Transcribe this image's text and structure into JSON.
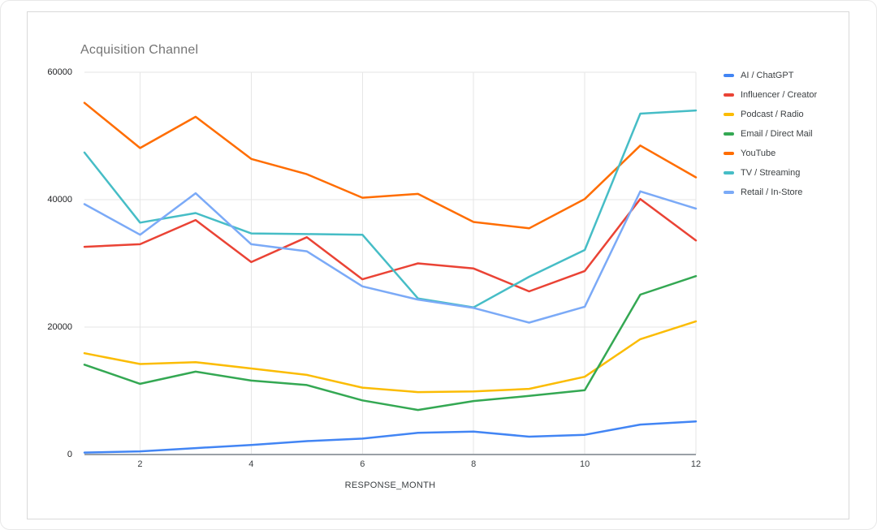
{
  "header": {
    "title": "Acquisition Channel"
  },
  "chart_data": {
    "type": "line",
    "title": "Acquisition Channel",
    "xlabel": "RESPONSE_MONTH",
    "ylabel": "",
    "x": [
      1,
      2,
      3,
      4,
      5,
      6,
      7,
      8,
      9,
      10,
      11,
      12
    ],
    "xlim": [
      1,
      12
    ],
    "ylim": [
      0,
      60000
    ],
    "grid": true,
    "legend_position": "right",
    "x_tick_values": [
      2,
      4,
      6,
      8,
      10,
      12
    ],
    "x_tick_labels": [
      "2",
      "4",
      "6",
      "8",
      "10",
      "12"
    ],
    "y_tick_values": [
      0,
      20000,
      40000,
      60000
    ],
    "y_tick_labels": [
      "0",
      "20000",
      "40000",
      "60000"
    ],
    "series": [
      {
        "name": "AI / ChatGPT",
        "color": "#4285F4",
        "values": [
          300,
          500,
          1000,
          1500,
          2100,
          2500,
          3400,
          3600,
          2800,
          3100,
          4700,
          5200
        ]
      },
      {
        "name": "Influencer / Creator",
        "color": "#EA4335",
        "values": [
          32600,
          33000,
          36800,
          30200,
          34100,
          27500,
          30000,
          29200,
          25600,
          28800,
          40100,
          33600
        ]
      },
      {
        "name": "Podcast / Radio",
        "color": "#FBBC04",
        "values": [
          15900,
          14200,
          14500,
          13500,
          12500,
          10500,
          9800,
          9900,
          10300,
          12200,
          18100,
          20900
        ]
      },
      {
        "name": "Email / Direct Mail",
        "color": "#34A853",
        "values": [
          14100,
          11100,
          13000,
          11600,
          10900,
          8500,
          7000,
          8400,
          9200,
          10100,
          25100,
          28000
        ]
      },
      {
        "name": "YouTube",
        "color": "#FF6D01",
        "values": [
          55200,
          48100,
          53000,
          46400,
          44000,
          40300,
          40900,
          36500,
          35500,
          40100,
          48500,
          43500
        ]
      },
      {
        "name": "TV / Streaming",
        "color": "#46BDC6",
        "values": [
          47400,
          36400,
          37900,
          34700,
          34600,
          34500,
          24500,
          23100,
          27900,
          32100,
          53500,
          54000
        ]
      },
      {
        "name": "Retail / In-Store",
        "color": "#7BAAF7",
        "values": [
          39300,
          34500,
          41000,
          33000,
          31900,
          26400,
          24300,
          23000,
          20700,
          23200,
          41300,
          38600
        ]
      }
    ],
    "style": {
      "gridline_color": "#e6e6e6",
      "axis_line_color": "#9aa0a6",
      "title_color": "#757575",
      "label_color": "#3c4043"
    }
  }
}
